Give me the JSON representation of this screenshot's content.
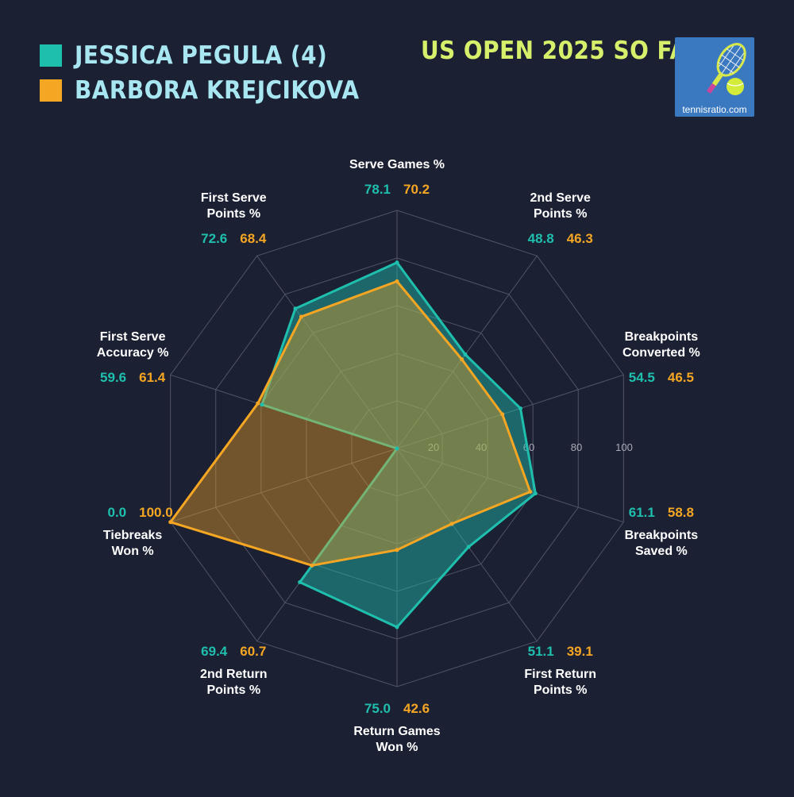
{
  "legend": [
    {
      "name": "JESSICA PEGULA (4)",
      "color": "#1fbfae"
    },
    {
      "name": "BARBORA KREJCIKOVA",
      "color": "#f5a623"
    }
  ],
  "event_title": "US OPEN 2025 SO FAR",
  "logo": {
    "text": "tennisratio.com"
  },
  "chart_data": {
    "type": "radar",
    "axes": [
      [
        "Serve Games %"
      ],
      [
        "2nd Serve",
        "Points %"
      ],
      [
        "Breakpoints",
        "Converted %"
      ],
      [
        "Breakpoints",
        "Saved %"
      ],
      [
        "First Return",
        "Points %"
      ],
      [
        "Return Games",
        "Won %"
      ],
      [
        "2nd Return",
        "Points %"
      ],
      [
        "Tiebreaks",
        "Won %"
      ],
      [
        "First Serve",
        "Accuracy %"
      ],
      [
        "First Serve",
        "Points %"
      ]
    ],
    "series": [
      {
        "name": "JESSICA PEGULA (4)",
        "color": "#1fbfae",
        "values": [
          78.1,
          48.8,
          54.5,
          61.1,
          51.1,
          75.0,
          69.4,
          0.0,
          59.6,
          72.6
        ]
      },
      {
        "name": "BARBORA KREJCIKOVA",
        "color": "#f5a623",
        "values": [
          70.2,
          46.3,
          46.5,
          58.8,
          39.1,
          42.6,
          60.7,
          100.0,
          61.4,
          68.4
        ]
      }
    ],
    "value_labels": {
      "s0": [
        "78.1",
        "48.8",
        "54.5",
        "61.1",
        "51.1",
        "75.0",
        "69.4",
        "0.0",
        "59.6",
        "72.6"
      ],
      "s1": [
        "70.2",
        "46.3",
        "46.5",
        "58.8",
        "39.1",
        "42.6",
        "60.7",
        "100.0",
        "61.4",
        "68.4"
      ]
    },
    "r_ticks": [
      "20",
      "40",
      "60",
      "80",
      "100"
    ],
    "r_range": [
      0,
      100
    ],
    "grid": true
  }
}
